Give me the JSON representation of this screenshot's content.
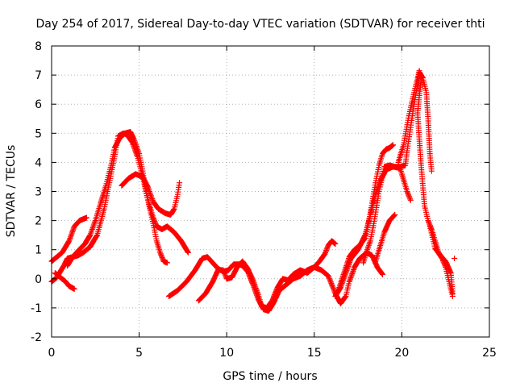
{
  "chart_data": {
    "type": "scatter",
    "title": "Day 254 of 2017, Sidereal Day-to-day VTEC variation (SDTVAR) for receiver thti",
    "xlabel": "GPS time / hours",
    "ylabel": "SDTVAR / TECUs",
    "xlim": [
      0,
      25
    ],
    "ylim": [
      -2,
      8
    ],
    "xticks": [
      0,
      5,
      10,
      15,
      20,
      25
    ],
    "yticks": [
      -2,
      -1,
      0,
      1,
      2,
      3,
      4,
      5,
      6,
      7,
      8
    ],
    "grid": true,
    "marker": "+",
    "color": "#ff0000",
    "series": [
      {
        "name": "trace-1",
        "points": [
          [
            0.0,
            0.6
          ],
          [
            0.3,
            0.75
          ],
          [
            0.6,
            0.9
          ],
          [
            1.0,
            1.3
          ],
          [
            1.3,
            1.8
          ],
          [
            1.6,
            2.0
          ],
          [
            2.0,
            2.1
          ]
        ]
      },
      {
        "name": "trace-2",
        "points": [
          [
            0.0,
            -0.1
          ],
          [
            0.3,
            0.05
          ],
          [
            0.5,
            0.25
          ],
          [
            0.7,
            0.45
          ],
          [
            0.9,
            0.7
          ],
          [
            1.2,
            0.75
          ],
          [
            1.5,
            0.8
          ],
          [
            1.8,
            0.9
          ],
          [
            2.2,
            1.1
          ],
          [
            2.6,
            1.5
          ],
          [
            3.0,
            2.4
          ],
          [
            3.3,
            3.3
          ],
          [
            3.6,
            4.2
          ],
          [
            3.8,
            4.9
          ],
          [
            4.1,
            5.0
          ],
          [
            4.3,
            4.95
          ],
          [
            4.6,
            4.7
          ],
          [
            4.9,
            4.2
          ],
          [
            5.2,
            3.5
          ],
          [
            5.5,
            2.7
          ],
          [
            5.8,
            1.9
          ],
          [
            6.0,
            1.3
          ],
          [
            6.2,
            0.9
          ],
          [
            6.4,
            0.6
          ],
          [
            6.6,
            0.55
          ]
        ]
      },
      {
        "name": "trace-3",
        "points": [
          [
            0.2,
            0.2
          ],
          [
            0.5,
            0.05
          ],
          [
            0.8,
            -0.1
          ],
          [
            1.0,
            -0.25
          ],
          [
            1.3,
            -0.35
          ]
        ]
      },
      {
        "name": "trace-4",
        "points": [
          [
            0.9,
            0.45
          ],
          [
            1.2,
            0.75
          ],
          [
            1.5,
            0.95
          ],
          [
            1.9,
            1.2
          ],
          [
            2.2,
            1.5
          ],
          [
            2.5,
            2.0
          ],
          [
            2.8,
            2.6
          ],
          [
            3.1,
            3.2
          ],
          [
            3.4,
            3.9
          ],
          [
            3.6,
            4.5
          ],
          [
            3.9,
            4.85
          ],
          [
            4.2,
            5.0
          ],
          [
            4.5,
            5.05
          ],
          [
            4.7,
            4.8
          ],
          [
            5.0,
            4.3
          ],
          [
            5.2,
            3.7
          ],
          [
            5.4,
            3.0
          ],
          [
            5.6,
            2.5
          ],
          [
            5.8,
            2.1
          ],
          [
            6.0,
            1.8
          ],
          [
            6.3,
            1.7
          ],
          [
            6.6,
            1.8
          ],
          [
            7.0,
            1.6
          ],
          [
            7.4,
            1.3
          ],
          [
            7.8,
            0.9
          ]
        ]
      },
      {
        "name": "trace-5",
        "points": [
          [
            4.0,
            3.2
          ],
          [
            4.4,
            3.45
          ],
          [
            4.8,
            3.6
          ],
          [
            5.2,
            3.5
          ],
          [
            5.5,
            3.15
          ],
          [
            5.8,
            2.65
          ],
          [
            6.1,
            2.4
          ],
          [
            6.5,
            2.25
          ],
          [
            6.8,
            2.2
          ],
          [
            7.0,
            2.4
          ],
          [
            7.2,
            2.9
          ],
          [
            7.3,
            3.3
          ]
        ]
      },
      {
        "name": "trace-6",
        "points": [
          [
            6.7,
            -0.6
          ],
          [
            7.2,
            -0.4
          ],
          [
            7.7,
            -0.1
          ],
          [
            8.2,
            0.3
          ],
          [
            8.6,
            0.7
          ],
          [
            8.9,
            0.75
          ],
          [
            9.2,
            0.55
          ],
          [
            9.5,
            0.35
          ],
          [
            9.8,
            0.25
          ],
          [
            10.1,
            0.3
          ],
          [
            10.4,
            0.5
          ],
          [
            10.7,
            0.5
          ],
          [
            10.9,
            0.45
          ],
          [
            11.2,
            0.25
          ],
          [
            11.5,
            -0.2
          ],
          [
            11.8,
            -0.7
          ],
          [
            12.1,
            -1.05
          ],
          [
            12.4,
            -1.1
          ],
          [
            12.7,
            -0.8
          ],
          [
            13.0,
            -0.4
          ],
          [
            13.4,
            -0.2
          ],
          [
            13.8,
            0.0
          ],
          [
            14.2,
            0.1
          ],
          [
            14.6,
            0.3
          ],
          [
            15.0,
            0.4
          ],
          [
            15.4,
            0.3
          ],
          [
            15.8,
            0.1
          ],
          [
            16.2,
            -0.5
          ],
          [
            16.5,
            -0.85
          ],
          [
            16.8,
            -0.6
          ],
          [
            17.0,
            -0.1
          ],
          [
            17.3,
            0.4
          ],
          [
            17.6,
            0.7
          ],
          [
            18.0,
            0.9
          ],
          [
            18.3,
            0.8
          ],
          [
            18.6,
            0.4
          ],
          [
            18.9,
            0.15
          ]
        ]
      },
      {
        "name": "trace-7",
        "points": [
          [
            8.4,
            -0.75
          ],
          [
            8.8,
            -0.5
          ],
          [
            9.2,
            -0.1
          ],
          [
            9.5,
            0.3
          ],
          [
            9.8,
            0.3
          ],
          [
            10.0,
            0.0
          ],
          [
            10.3,
            0.05
          ],
          [
            10.6,
            0.4
          ],
          [
            10.9,
            0.6
          ],
          [
            11.2,
            0.35
          ],
          [
            11.5,
            -0.05
          ],
          [
            11.8,
            -0.55
          ],
          [
            12.0,
            -0.95
          ],
          [
            12.3,
            -1.0
          ],
          [
            12.6,
            -0.75
          ],
          [
            12.9,
            -0.3
          ],
          [
            13.2,
            0.0
          ],
          [
            13.5,
            -0.05
          ],
          [
            13.8,
            0.15
          ],
          [
            14.2,
            0.3
          ],
          [
            14.6,
            0.2
          ],
          [
            15.0,
            0.4
          ],
          [
            15.3,
            0.6
          ],
          [
            15.6,
            0.85
          ],
          [
            15.8,
            1.15
          ],
          [
            16.0,
            1.3
          ],
          [
            16.2,
            1.2
          ]
        ]
      },
      {
        "name": "trace-8",
        "points": [
          [
            16.2,
            -0.6
          ],
          [
            16.5,
            -0.3
          ],
          [
            16.8,
            0.2
          ],
          [
            17.1,
            0.7
          ],
          [
            17.5,
            1.0
          ],
          [
            17.9,
            1.5
          ],
          [
            18.2,
            2.2
          ],
          [
            18.5,
            2.9
          ],
          [
            18.8,
            3.4
          ],
          [
            19.1,
            3.75
          ],
          [
            19.5,
            3.85
          ],
          [
            19.9,
            3.8
          ],
          [
            20.1,
            3.4
          ],
          [
            20.3,
            3.0
          ],
          [
            20.5,
            2.7
          ]
        ]
      },
      {
        "name": "trace-9",
        "points": [
          [
            16.4,
            -0.35
          ],
          [
            16.7,
            0.2
          ],
          [
            17.0,
            0.75
          ],
          [
            17.3,
            1.0
          ],
          [
            17.6,
            1.15
          ],
          [
            17.9,
            1.4
          ],
          [
            18.1,
            1.9
          ],
          [
            18.3,
            2.6
          ],
          [
            18.5,
            3.3
          ],
          [
            18.7,
            3.9
          ],
          [
            18.9,
            4.3
          ],
          [
            19.1,
            4.45
          ],
          [
            19.3,
            4.5
          ],
          [
            19.5,
            4.6
          ]
        ]
      },
      {
        "name": "trace-10",
        "points": [
          [
            17.8,
            0.55
          ],
          [
            18.0,
            0.95
          ],
          [
            18.2,
            1.3
          ],
          [
            18.4,
            1.9
          ],
          [
            18.7,
            3.0
          ],
          [
            19.0,
            3.85
          ],
          [
            19.3,
            3.9
          ],
          [
            19.6,
            3.85
          ],
          [
            19.9,
            3.85
          ],
          [
            20.2,
            3.9
          ],
          [
            20.3,
            4.4
          ],
          [
            20.5,
            5.2
          ],
          [
            20.7,
            6.0
          ],
          [
            20.9,
            6.7
          ],
          [
            21.0,
            7.1
          ],
          [
            21.2,
            6.9
          ],
          [
            21.4,
            6.4
          ],
          [
            21.5,
            5.5
          ],
          [
            21.6,
            4.3
          ],
          [
            21.7,
            3.7
          ]
        ]
      },
      {
        "name": "trace-11",
        "points": [
          [
            18.5,
            0.6
          ],
          [
            18.8,
            1.2
          ],
          [
            19.0,
            1.6
          ],
          [
            19.3,
            2.0
          ],
          [
            19.6,
            2.2
          ]
        ]
      },
      {
        "name": "trace-12",
        "points": [
          [
            19.8,
            4.0
          ],
          [
            20.1,
            4.6
          ],
          [
            20.4,
            5.6
          ],
          [
            20.7,
            6.4
          ],
          [
            20.9,
            6.9
          ],
          [
            21.0,
            7.15
          ],
          [
            21.1,
            6.8
          ],
          [
            21.0,
            6.3
          ],
          [
            20.9,
            5.7
          ],
          [
            21.0,
            4.8
          ],
          [
            21.1,
            3.9
          ],
          [
            21.2,
            3.2
          ],
          [
            21.3,
            2.5
          ],
          [
            21.5,
            2.0
          ],
          [
            21.7,
            1.7
          ],
          [
            21.9,
            1.3
          ],
          [
            22.1,
            0.9
          ],
          [
            22.3,
            0.7
          ],
          [
            22.5,
            0.4
          ],
          [
            22.7,
            -0.1
          ],
          [
            22.9,
            -0.6
          ]
        ]
      },
      {
        "name": "trace-13",
        "points": [
          [
            21.6,
            1.8
          ],
          [
            21.9,
            1.05
          ],
          [
            22.2,
            0.8
          ],
          [
            22.5,
            0.6
          ],
          [
            22.8,
            0.2
          ],
          [
            22.9,
            -0.5
          ]
        ]
      },
      {
        "name": "trace-14",
        "points": [
          [
            23.0,
            0.7
          ]
        ]
      }
    ]
  }
}
